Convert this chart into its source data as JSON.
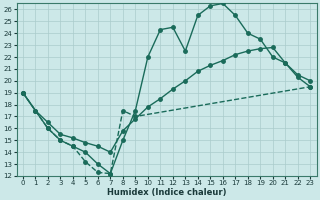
{
  "xlabel": "Humidex (Indice chaleur)",
  "background_color": "#cce8e8",
  "grid_color": "#aacccc",
  "line_color": "#1a6b5a",
  "xlim": [
    -0.5,
    23.5
  ],
  "ylim": [
    12,
    26.5
  ],
  "xticks": [
    0,
    1,
    2,
    3,
    4,
    5,
    6,
    7,
    8,
    9,
    10,
    11,
    12,
    13,
    14,
    15,
    16,
    17,
    18,
    19,
    20,
    21,
    22,
    23
  ],
  "yticks": [
    12,
    13,
    14,
    15,
    16,
    17,
    18,
    19,
    20,
    21,
    22,
    23,
    24,
    25,
    26
  ],
  "line1_x": [
    0,
    1,
    2,
    3,
    4,
    5,
    6,
    7,
    8,
    9,
    10,
    11,
    12,
    13,
    14,
    15,
    16,
    17,
    18,
    19,
    20,
    21,
    22,
    23
  ],
  "line1_y": [
    19,
    17.5,
    16,
    15,
    14.5,
    14,
    13,
    12.2,
    15,
    17.5,
    22,
    24.3,
    24.5,
    22.5,
    25.5,
    26.3,
    26.5,
    25.5,
    24.0,
    23.5,
    22.0,
    21.5,
    20.5,
    20.0
  ],
  "line2_x": [
    0,
    1,
    2,
    3,
    4,
    5,
    6,
    7,
    8,
    9,
    10,
    11,
    12,
    13,
    14,
    15,
    16,
    17,
    18,
    19,
    20,
    21,
    22,
    23
  ],
  "line2_y": [
    19,
    17.5,
    16.5,
    15.5,
    15.2,
    14.8,
    14.5,
    14.0,
    15.8,
    16.8,
    17.8,
    18.5,
    19.3,
    20.0,
    20.8,
    21.3,
    21.7,
    22.2,
    22.5,
    22.7,
    22.8,
    21.5,
    20.3,
    19.5
  ],
  "line3_x": [
    0,
    2,
    3,
    4,
    5,
    6,
    7,
    8,
    9,
    23
  ],
  "line3_y": [
    19,
    16,
    15,
    14.5,
    13.2,
    12.3,
    12.2,
    17.5,
    17,
    19.5
  ],
  "marker_size": 2.5,
  "line_width": 1.0
}
